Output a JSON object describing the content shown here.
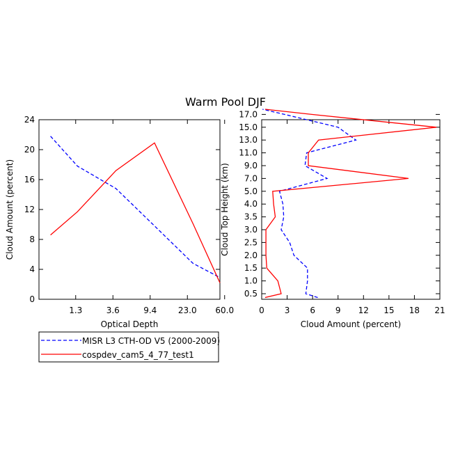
{
  "chart_data": {
    "title": "Warm Pool DJF",
    "legend": {
      "placement": "bottom-left",
      "entries": [
        {
          "label": "MISR L3 CTH-OD V5 (2000-2009)",
          "color": "#0000ff",
          "dash": true
        },
        {
          "label": "cospdev_cam5_4_77_test1",
          "color": "#ff0000",
          "dash": false
        }
      ]
    },
    "panels": [
      {
        "id": "left",
        "type": "line",
        "xlabel": "Optical Depth",
        "ylabel": "Cloud Amount (percent)",
        "x_categories": [
          "1.3",
          "3.6",
          "9.4",
          "23.0",
          "60.0"
        ],
        "ylim": [
          0,
          24
        ],
        "yticks": [
          "0",
          "4",
          "8",
          "12",
          "16",
          "20",
          "24"
        ],
        "series": [
          {
            "name": "MISR L3 CTH-OD V5 (2000-2009)",
            "color": "#0000ff",
            "dash": true,
            "x": [
              0.3,
              1.0,
              2.0,
              3.0,
              4.0,
              4.7
            ],
            "y": [
              21.8,
              17.8,
              14.8,
              9.8,
              4.8,
              2.9
            ]
          },
          {
            "name": "cospdev_cam5_4_77_test1",
            "color": "#ff0000",
            "dash": false,
            "x": [
              0.3,
              1.0,
              2.0,
              3.0,
              4.0,
              4.7
            ],
            "y": [
              8.6,
              11.7,
              17.2,
              20.9,
              10.1,
              2.2
            ]
          }
        ]
      },
      {
        "id": "right",
        "type": "line",
        "xlabel": "Cloud Amount (percent)",
        "ylabel": "Cloud Top Height (km)",
        "xlim": [
          0,
          21
        ],
        "xticks": [
          "0",
          "3",
          "6",
          "9",
          "12",
          "15",
          "18",
          "21"
        ],
        "y_categories": [
          "0.5",
          "1.0",
          "1.5",
          "2.0",
          "2.5",
          "3.0",
          "3.5",
          "4.0",
          "5.0",
          "7.0",
          "9.0",
          "11.0",
          "13.0",
          "15.0",
          "17.0"
        ],
        "series": [
          {
            "name": "MISR L3 CTH-OD V5 (2000-2009)",
            "color": "#0000ff",
            "dash": true,
            "y_index": [
              -0.3,
              0,
              1,
              2,
              3,
              4,
              5,
              6,
              7,
              8,
              9,
              10,
              11,
              12,
              13,
              14,
              14.4
            ],
            "x": [
              6.6,
              5.2,
              5.4,
              5.4,
              3.8,
              3.3,
              2.3,
              2.6,
              2.5,
              2.1,
              7.7,
              5.1,
              5.3,
              11.1,
              9.0,
              2.7,
              0.1
            ]
          },
          {
            "name": "cospdev_cam5_4_77_test1",
            "color": "#ff0000",
            "dash": false,
            "y_index": [
              -0.3,
              0,
              1,
              2,
              3,
              4,
              5,
              6,
              7,
              8,
              9,
              10,
              11,
              12,
              13,
              14,
              14.4
            ],
            "x": [
              0.4,
              2.3,
              1.9,
              0.6,
              0.5,
              0.5,
              0.5,
              1.6,
              1.4,
              1.3,
              17.3,
              5.5,
              5.5,
              6.7,
              20.6,
              5.9,
              0.4
            ]
          }
        ]
      }
    ]
  }
}
